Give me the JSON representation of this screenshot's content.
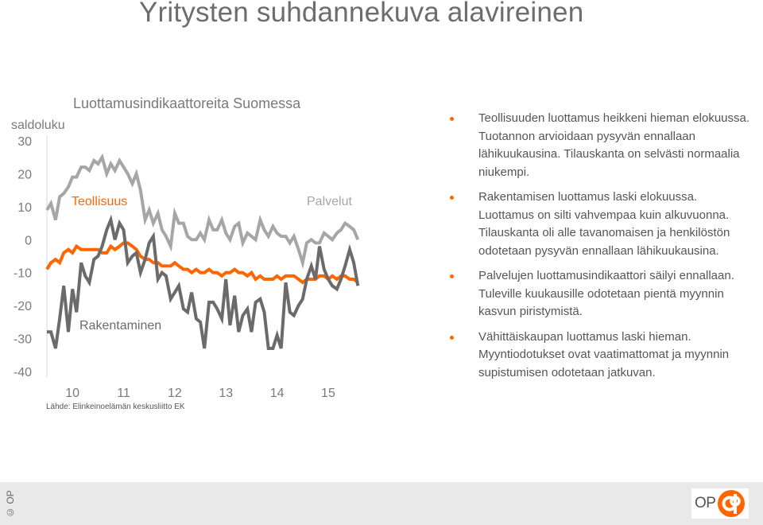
{
  "page": {
    "title": "Yritysten suhdannekuva alavireinen"
  },
  "colors": {
    "accent": "#ff6600",
    "light_gray": "#a6a6a6",
    "dark_gray": "#6b6b6b",
    "footer_bg": "#e9e9e9"
  },
  "chart_data": {
    "type": "line",
    "title": "Luottamusindikaattoreita Suomessa",
    "ylabel": "saldoluku",
    "source": "Lähde: Elinkeinoelämän keskusliitto EK",
    "ylim": [
      -40,
      30
    ],
    "yticks": [
      "30",
      "20",
      "10",
      "0",
      "-10",
      "-20",
      "-30",
      "-40"
    ],
    "ytick_values": [
      30,
      20,
      10,
      0,
      -10,
      -20,
      -30,
      -40
    ],
    "xlim": [
      2009.5,
      2015.7
    ],
    "xticks": [
      "10",
      "11",
      "12",
      "13",
      "14",
      "15"
    ],
    "xtick_values": [
      2010,
      2011,
      2012,
      2013,
      2014,
      2015
    ],
    "series": [
      {
        "name": "Palvelut",
        "color": "#a6a6a6",
        "x": [
          2009.5,
          2009.58,
          2009.67,
          2009.75,
          2009.83,
          2009.92,
          2010.0,
          2010.08,
          2010.17,
          2010.25,
          2010.33,
          2010.42,
          2010.5,
          2010.58,
          2010.67,
          2010.75,
          2010.83,
          2010.92,
          2011.0,
          2011.08,
          2011.17,
          2011.25,
          2011.33,
          2011.42,
          2011.5,
          2011.58,
          2011.67,
          2011.75,
          2011.83,
          2011.92,
          2012.0,
          2012.08,
          2012.17,
          2012.25,
          2012.33,
          2012.42,
          2012.5,
          2012.58,
          2012.67,
          2012.75,
          2012.83,
          2012.92,
          2013.0,
          2013.08,
          2013.17,
          2013.25,
          2013.33,
          2013.42,
          2013.5,
          2013.58,
          2013.67,
          2013.75,
          2013.83,
          2013.92,
          2014.0,
          2014.08,
          2014.17,
          2014.25,
          2014.33,
          2014.42,
          2014.5,
          2014.58,
          2014.67,
          2014.75,
          2014.83,
          2014.92,
          2015.0,
          2015.08,
          2015.17,
          2015.25,
          2015.33,
          2015.42,
          2015.5,
          2015.58
        ],
        "values": [
          9,
          11,
          6,
          13,
          14,
          16,
          19,
          19,
          22,
          22,
          21,
          24,
          23,
          25,
          20,
          23,
          21,
          24,
          22,
          20,
          17,
          20,
          15,
          6,
          9,
          5,
          8,
          3,
          1,
          -2,
          8,
          5,
          5,
          1,
          0,
          0,
          2,
          0,
          6,
          3,
          3,
          6,
          2,
          0,
          4,
          5,
          -1,
          2,
          1,
          0,
          6,
          3,
          1,
          4,
          2,
          1,
          1,
          -1,
          1,
          -3,
          -7,
          -1,
          0,
          -1,
          -1,
          2,
          1,
          0,
          2,
          3,
          5,
          4,
          3,
          0
        ]
      },
      {
        "name": "Teollisuus",
        "color": "#ff6600",
        "x": [
          2009.5,
          2009.58,
          2009.67,
          2009.75,
          2009.83,
          2009.92,
          2010.0,
          2010.08,
          2010.17,
          2010.25,
          2010.33,
          2010.42,
          2010.5,
          2010.58,
          2010.67,
          2010.75,
          2010.83,
          2010.92,
          2011.0,
          2011.08,
          2011.17,
          2011.25,
          2011.33,
          2011.42,
          2011.5,
          2011.58,
          2011.67,
          2011.75,
          2011.83,
          2011.92,
          2012.0,
          2012.08,
          2012.17,
          2012.25,
          2012.33,
          2012.42,
          2012.5,
          2012.58,
          2012.67,
          2012.75,
          2012.83,
          2012.92,
          2013.0,
          2013.08,
          2013.17,
          2013.25,
          2013.33,
          2013.42,
          2013.5,
          2013.58,
          2013.67,
          2013.75,
          2013.83,
          2013.92,
          2014.0,
          2014.08,
          2014.17,
          2014.25,
          2014.33,
          2014.42,
          2014.5,
          2014.58,
          2014.67,
          2014.75,
          2014.83,
          2014.92,
          2015.0,
          2015.08,
          2015.17,
          2015.25,
          2015.33,
          2015.42,
          2015.5,
          2015.58
        ],
        "values": [
          -9,
          -7,
          -6,
          -7,
          -4,
          -3,
          -4,
          -2,
          -3,
          -3,
          -3,
          -3,
          -3,
          -4,
          -4,
          -2,
          -3,
          -2,
          -1,
          -1,
          -2,
          -3,
          -5,
          -6,
          -6,
          -7,
          -7,
          -8,
          -8,
          -8,
          -7,
          -8,
          -9,
          -9,
          -10,
          -9,
          -10,
          -10,
          -9,
          -10,
          -10,
          -11,
          -10,
          -10,
          -9,
          -10,
          -10,
          -11,
          -10,
          -12,
          -11,
          -12,
          -12,
          -12,
          -11,
          -12,
          -11,
          -11,
          -11,
          -12,
          -13,
          -12,
          -12,
          -12,
          -11,
          -11,
          -12,
          -11,
          -12,
          -11,
          -11,
          -12,
          -12,
          -13
        ]
      },
      {
        "name": "Rakentaminen",
        "color": "#6b6b6b",
        "x": [
          2009.5,
          2009.58,
          2009.67,
          2009.75,
          2009.83,
          2009.92,
          2010.0,
          2010.08,
          2010.17,
          2010.25,
          2010.33,
          2010.42,
          2010.5,
          2010.58,
          2010.67,
          2010.75,
          2010.83,
          2010.92,
          2011.0,
          2011.08,
          2011.17,
          2011.25,
          2011.33,
          2011.42,
          2011.5,
          2011.58,
          2011.67,
          2011.75,
          2011.83,
          2011.92,
          2012.0,
          2012.08,
          2012.17,
          2012.25,
          2012.33,
          2012.42,
          2012.5,
          2012.58,
          2012.67,
          2012.75,
          2012.83,
          2012.92,
          2013.0,
          2013.08,
          2013.17,
          2013.25,
          2013.33,
          2013.42,
          2013.5,
          2013.58,
          2013.67,
          2013.75,
          2013.83,
          2013.92,
          2014.0,
          2014.08,
          2014.17,
          2014.25,
          2014.33,
          2014.42,
          2014.5,
          2014.58,
          2014.67,
          2014.75,
          2014.83,
          2014.92,
          2015.0,
          2015.08,
          2015.17,
          2015.25,
          2015.33,
          2015.42,
          2015.5,
          2015.58
        ],
        "values": [
          -28,
          -28,
          -33,
          -24,
          -14,
          -28,
          -15,
          -22,
          -7,
          -11,
          -13,
          -6,
          -5,
          -2,
          3,
          6,
          0,
          5,
          3,
          -7,
          -5,
          -4,
          -10,
          -6,
          -1,
          1,
          -12,
          -10,
          -11,
          -18,
          -16,
          -14,
          -21,
          -22,
          -16,
          -24,
          -25,
          -33,
          -19,
          -19,
          -21,
          -24,
          -12,
          -26,
          -17,
          -28,
          -23,
          -21,
          -28,
          -19,
          -18,
          -22,
          -33,
          -33,
          -29,
          -33,
          -13,
          -22,
          -23,
          -20,
          -18,
          -12,
          -8,
          -12,
          -2,
          -9,
          -12,
          -14,
          -15,
          -12,
          -8,
          -3,
          -7,
          -14
        ]
      }
    ],
    "labels": {
      "teollisuus": "Teollisuus",
      "palvelut": "Palvelut",
      "rakentaminen": "Rakentaminen"
    }
  },
  "bullets": [
    "Teollisuuden luottamus heikkeni hieman elokuussa. Tuotannon arvioidaan pysyvän ennallaan lähikuukausina. Tilauskanta on selvästi normaalia niukempi.",
    "Rakentamisen luottamus laski elokuussa. Luottamus on silti vahvempaa kuin alkuvuonna. Tilauskanta oli alle tavanomaisen ja henkilöstön odotetaan pysyvän ennallaan lähikuukausina.",
    "Palvelujen luottamusindikaattori säilyi ennallaan. Tuleville kuukausille odotetaan pientä myynnin kasvun piristymistä.",
    "Vähittäiskaupan luottamus laski hieman. Myyntiodotukset ovat vaatimattomat ja myynnin supistumisen odotetaan jatkuvan."
  ],
  "footer": {
    "copyright": "© OP",
    "logo_text": "OP",
    "logo_icon": "op-logo-icon"
  }
}
